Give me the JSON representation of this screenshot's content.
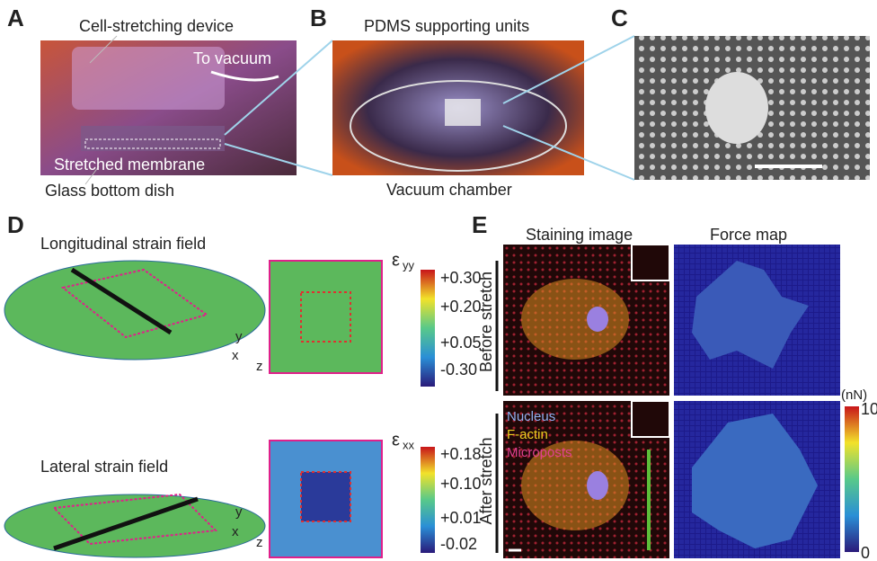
{
  "panels": {
    "A": {
      "letter": "A",
      "device": "Cell-stretching device",
      "to_vacuum": "To vacuum",
      "membrane": "Stretched membrane",
      "dish": "Glass bottom dish"
    },
    "B": {
      "letter": "B",
      "supports": "PDMS supporting units",
      "chamber": "Vacuum chamber"
    },
    "C": {
      "letter": "C"
    },
    "D": {
      "letter": "D",
      "longitudinal": {
        "title": "Longitudinal strain field",
        "symbol": "ε",
        "subscript": "yy",
        "ticks": [
          "+0.30",
          "+0.20",
          "+0.05",
          "-0.30"
        ],
        "axes": [
          "y",
          "x",
          "z"
        ]
      },
      "lateral": {
        "title": "Lateral strain field",
        "symbol": "ε",
        "subscript": "xx",
        "ticks": [
          "+0.18",
          "+0.10",
          "+0.01",
          "-0.02"
        ],
        "axes": [
          "y",
          "x",
          "z"
        ]
      }
    },
    "E": {
      "letter": "E",
      "col1": "Staining image",
      "col2": "Force map",
      "row1": "Before stretch",
      "row2": "After stretch",
      "legend": [
        "Nucleus",
        "F-actin",
        "Microposts"
      ],
      "unit": "(nN)",
      "max": "10",
      "min": "0"
    }
  }
}
